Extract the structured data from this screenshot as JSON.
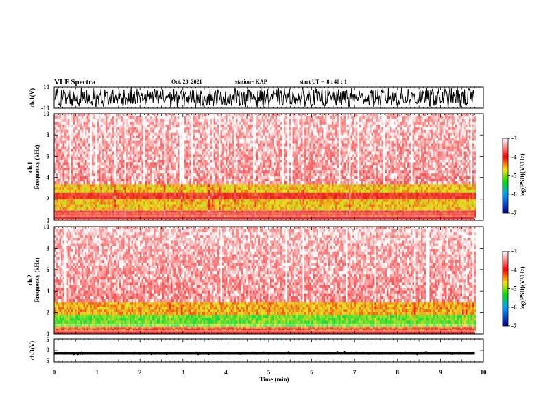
{
  "header": {
    "title": "VLF Spectra",
    "date": "Oct. 23, 2021",
    "station": "station= KAP",
    "start": "start UT =  8 : 40 : 1"
  },
  "chart_data": [
    {
      "id": "ch1-waveform",
      "type": "line",
      "ylabel": "ch.1(V)",
      "ylim": [
        -10,
        10
      ],
      "yticks": [
        "10",
        "-10"
      ],
      "xlim": [
        0,
        10
      ],
      "description": "dense oscillating waveform filling most of the range, data through ~9.8 min"
    },
    {
      "id": "ch1-spectrogram",
      "type": "heatmap",
      "ylabel": "ch.1\nFrequency (kHz)",
      "ylim": [
        0,
        10
      ],
      "yticks": [
        "0",
        "2",
        "4",
        "6",
        "8",
        "10"
      ],
      "xlim": [
        0,
        9.8
      ],
      "colorbar": {
        "label": "log(PSD)(V²/Hz)",
        "range": [
          -7,
          -3
        ],
        "ticks": [
          "-3",
          "-4",
          "-5",
          "-6",
          "-7"
        ]
      },
      "bands": [
        {
          "freq_kHz": [
            0.3,
            1.0
          ],
          "level": -4.0
        },
        {
          "freq_kHz": [
            1.0,
            2.0
          ],
          "level": -4.6
        },
        {
          "freq_kHz": [
            2.0,
            2.6
          ],
          "level": -4.0
        },
        {
          "freq_kHz": [
            2.6,
            3.4
          ],
          "level": -4.6
        },
        {
          "freq_kHz": [
            3.4,
            10
          ],
          "level": -3.6
        }
      ]
    },
    {
      "id": "ch2-spectrogram",
      "type": "heatmap",
      "ylabel": "ch.2\nFrequency (kHz)",
      "ylim": [
        0,
        10
      ],
      "yticks": [
        "0",
        "2",
        "4",
        "6",
        "8",
        "10"
      ],
      "xlim": [
        0,
        9.8
      ],
      "colorbar": {
        "label": "log(PSD)(V²/Hz)",
        "range": [
          -7,
          -3
        ],
        "ticks": [
          "-3",
          "-4",
          "-5",
          "-6",
          "-7"
        ]
      },
      "bands": [
        {
          "freq_kHz": [
            0.3,
            0.7
          ],
          "level": -4.2
        },
        {
          "freq_kHz": [
            0.7,
            1.8
          ],
          "level": -5.1
        },
        {
          "freq_kHz": [
            1.8,
            3.0
          ],
          "level": -4.5
        },
        {
          "freq_kHz": [
            3.0,
            10
          ],
          "level": -3.6
        }
      ]
    },
    {
      "id": "ch3-waveform",
      "type": "line",
      "ylabel": "ch.3(V)",
      "ylim": [
        -5,
        5
      ],
      "yticks": [
        "5",
        "0",
        "-5"
      ],
      "xlim": [
        0,
        10
      ],
      "description": "thick nearly flat band around -1 V, data through ~9.8 min"
    }
  ],
  "xaxis": {
    "label": "Time (min)",
    "ticks": [
      "0",
      "1",
      "2",
      "3",
      "4",
      "5",
      "6",
      "7",
      "8",
      "9",
      "10"
    ]
  },
  "colors": {
    "background": "#ffffff",
    "waveform": "#000000",
    "spectro_low": "#ffffff",
    "spectro_red": "#ee1c1c",
    "spectro_yellow": "#f0e020",
    "spectro_green": "#22dd33"
  }
}
